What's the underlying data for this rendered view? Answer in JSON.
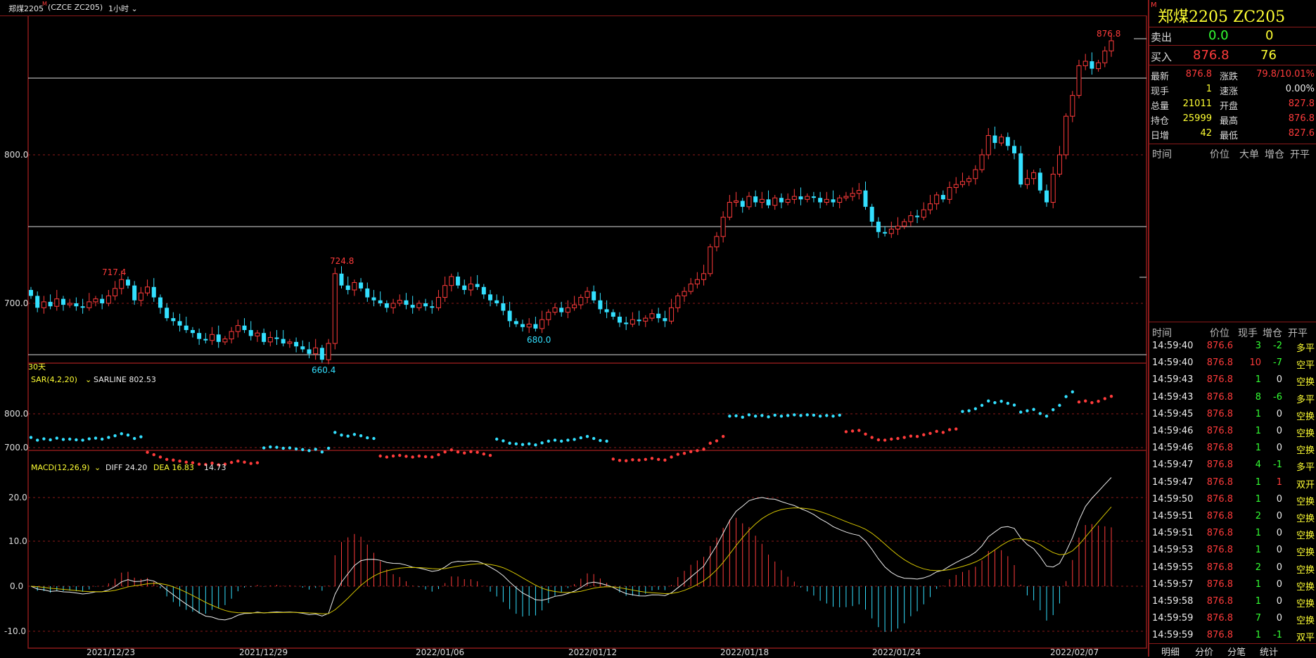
{
  "header": {
    "contract": "郑煤2205",
    "mark": "M",
    "code": "(CZCE ZC205)",
    "period": "1小时",
    "period_icon": "chevron-down-icon"
  },
  "colors": {
    "up": "#ff3b3b",
    "down": "#33e0ff",
    "grid": "#8b1a1a",
    "yellow": "#ffff33"
  },
  "main": {
    "ylabels": [
      "800.0",
      "700.0"
    ],
    "range_label": "30天",
    "annotations": {
      "hi_right": "876.8",
      "h1": "717.4",
      "h2": "724.8",
      "l1": "680.0",
      "l2": "660.4"
    }
  },
  "sar": {
    "title": "SAR(4,2,20)",
    "sarline_label": "SARLINE 802.53",
    "ylabels": [
      "800.0",
      "700.0"
    ]
  },
  "macd": {
    "title": "MACD(12,26,9)",
    "diff_label": "DIFF 24.20",
    "dea_label": "DEA 16.83",
    "macd_value": "14.73",
    "ylabels": [
      "20.0",
      "10.0",
      "0.0",
      "-10.0"
    ]
  },
  "xaxis": [
    "2021/12/23",
    "2021/12/29",
    "2022/01/06",
    "2022/01/12",
    "2022/01/18",
    "2022/01/24",
    "2022/02/07"
  ],
  "panel": {
    "title": "郑煤2205  ZC205",
    "sell": {
      "label": "卖出",
      "price": "0.0",
      "vol": "0"
    },
    "buy": {
      "label": "买入",
      "price": "876.8",
      "vol": "76"
    },
    "quotes": [
      {
        "l1": "最新",
        "v1": "876.8",
        "l2": "涨跌",
        "v2": "79.8/10.01%"
      },
      {
        "l1": "现手",
        "v1": "1",
        "l2": "速涨",
        "v2": "0.00%"
      },
      {
        "l1": "总量",
        "v1": "21011",
        "l2": "开盘",
        "v2": "827.8"
      },
      {
        "l1": "持仓",
        "v1": "25999",
        "l2": "最高",
        "v2": "876.8"
      },
      {
        "l1": "日增",
        "v1": "42",
        "l2": "最低",
        "v2": "827.6"
      }
    ],
    "big_header": {
      "time": "时间",
      "price": "价位",
      "big": "大单",
      "inc": "增仓",
      "oc": "开平"
    },
    "trade_header": {
      "time": "时间",
      "price": "价位",
      "hand": "现手",
      "inc": "增仓",
      "oc": "开平"
    },
    "trades": [
      {
        "time": "14:59:40",
        "price": "876.6",
        "hand": "3",
        "inc": "-2",
        "oc": "多平"
      },
      {
        "time": "14:59:40",
        "price": "876.8",
        "hand": "10",
        "inc": "-7",
        "oc": "空平"
      },
      {
        "time": "14:59:43",
        "price": "876.8",
        "hand": "1",
        "inc": "0",
        "oc": "空换"
      },
      {
        "time": "14:59:43",
        "price": "876.8",
        "hand": "8",
        "inc": "-6",
        "oc": "多平"
      },
      {
        "time": "14:59:45",
        "price": "876.8",
        "hand": "1",
        "inc": "0",
        "oc": "空换"
      },
      {
        "time": "14:59:46",
        "price": "876.8",
        "hand": "1",
        "inc": "0",
        "oc": "空换"
      },
      {
        "time": "14:59:46",
        "price": "876.8",
        "hand": "1",
        "inc": "0",
        "oc": "空换"
      },
      {
        "time": "14:59:47",
        "price": "876.8",
        "hand": "4",
        "inc": "-1",
        "oc": "多平"
      },
      {
        "time": "14:59:47",
        "price": "876.8",
        "hand": "1",
        "inc": "1",
        "oc": "双开"
      },
      {
        "time": "14:59:50",
        "price": "876.8",
        "hand": "1",
        "inc": "0",
        "oc": "空换"
      },
      {
        "time": "14:59:51",
        "price": "876.8",
        "hand": "2",
        "inc": "0",
        "oc": "空换"
      },
      {
        "time": "14:59:51",
        "price": "876.8",
        "hand": "1",
        "inc": "0",
        "oc": "空换"
      },
      {
        "time": "14:59:53",
        "price": "876.8",
        "hand": "1",
        "inc": "0",
        "oc": "空换"
      },
      {
        "time": "14:59:55",
        "price": "876.8",
        "hand": "2",
        "inc": "0",
        "oc": "空换"
      },
      {
        "time": "14:59:57",
        "price": "876.8",
        "hand": "1",
        "inc": "0",
        "oc": "空换"
      },
      {
        "time": "14:59:58",
        "price": "876.8",
        "hand": "1",
        "inc": "0",
        "oc": "空换"
      },
      {
        "time": "14:59:59",
        "price": "876.8",
        "hand": "7",
        "inc": "0",
        "oc": "空换"
      },
      {
        "time": "14:59:59",
        "price": "876.8",
        "hand": "1",
        "inc": "-1",
        "oc": "双平"
      }
    ],
    "tabs": [
      "明细",
      "分价",
      "分笔",
      "统计"
    ]
  },
  "chart_data": {
    "type": "candlestick",
    "ylim": [
      655,
      880
    ],
    "closes": [
      705,
      697,
      701,
      698,
      703,
      699,
      700,
      698,
      697,
      701,
      703,
      700,
      705,
      710,
      716,
      712,
      702,
      707,
      711,
      704,
      697,
      690,
      688,
      685,
      682,
      680,
      676,
      675,
      679,
      674,
      676,
      681,
      685,
      682,
      678,
      680,
      674,
      677,
      676,
      673,
      674,
      671,
      669,
      666,
      670,
      662,
      673,
      720,
      712,
      709,
      714,
      710,
      704,
      702,
      700,
      697,
      700,
      702,
      699,
      697,
      700,
      698,
      697,
      704,
      712,
      718,
      712,
      709,
      713,
      711,
      706,
      702,
      700,
      695,
      688,
      686,
      684,
      686,
      683,
      689,
      694,
      697,
      694,
      697,
      699,
      704,
      708,
      702,
      696,
      694,
      691,
      687,
      686,
      689,
      688,
      690,
      693,
      690,
      688,
      697,
      705,
      708,
      713,
      716,
      720,
      738,
      745,
      758,
      768,
      769,
      765,
      772,
      768,
      770,
      766,
      771,
      768,
      770,
      772,
      770,
      772,
      771,
      768,
      770,
      768,
      771,
      772,
      774,
      776,
      765,
      755,
      748,
      747,
      750,
      752,
      755,
      759,
      758,
      763,
      767,
      773,
      770,
      778,
      780,
      782,
      784,
      790,
      800,
      813,
      808,
      812,
      806,
      801,
      780,
      784,
      788,
      776,
      768,
      787,
      800,
      826,
      840,
      860,
      863,
      858,
      862,
      870,
      876.8
    ]
  }
}
